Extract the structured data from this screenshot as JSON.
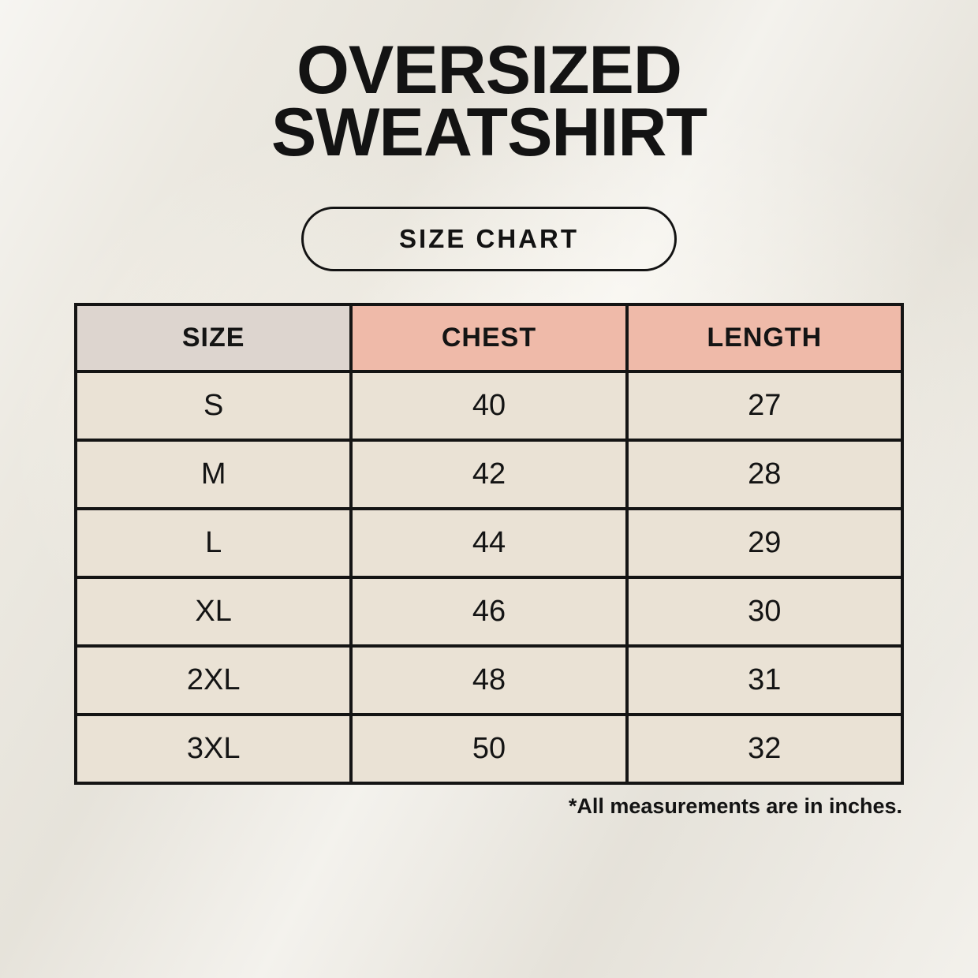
{
  "title": {
    "line1": "OVERSIZED",
    "line2": "SWEATSHIRT"
  },
  "size_chart_button_label": "SIZE CHART",
  "chart_data": {
    "type": "table",
    "title": "OVERSIZED SWEATSHIRT SIZE CHART",
    "columns": [
      "SIZE",
      "CHEST",
      "LENGTH"
    ],
    "rows": [
      [
        "S",
        "40",
        "27"
      ],
      [
        "M",
        "42",
        "28"
      ],
      [
        "L",
        "44",
        "29"
      ],
      [
        "XL",
        "46",
        "30"
      ],
      [
        "2XL",
        "48",
        "31"
      ],
      [
        "3XL",
        "50",
        "32"
      ]
    ],
    "units": "inches",
    "footnote": "*All measurements are in inches."
  },
  "colors": {
    "page_background": "#ECE9E1",
    "header_size_bg": "#DDD5CF",
    "header_accent_bg": "#EFBAA9",
    "size_column_bg": "#DCD4CE",
    "data_cell_bg": "#EAE2D5",
    "border": "#141414",
    "text": "#131313"
  }
}
